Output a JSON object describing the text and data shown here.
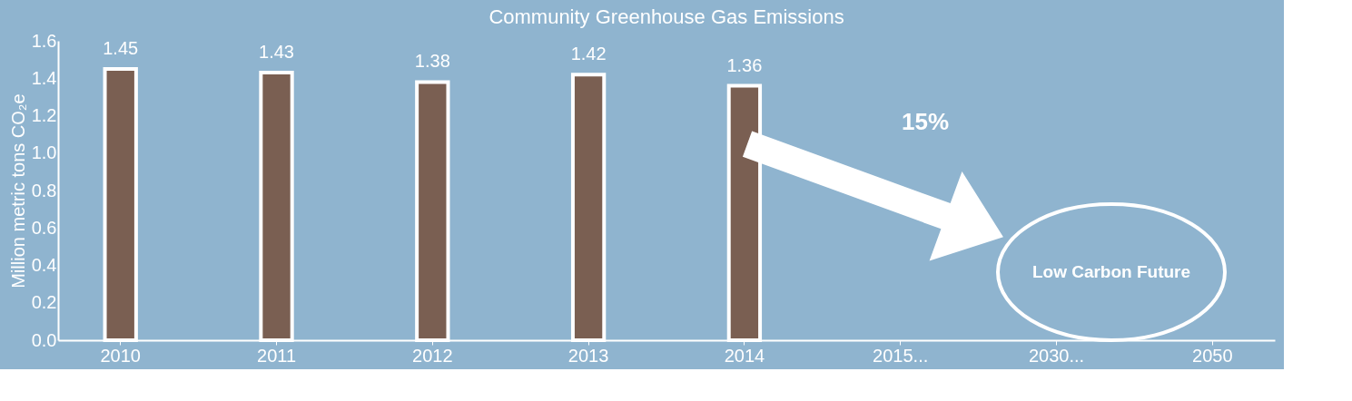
{
  "chart_data": {
    "type": "bar",
    "title": "Community Greenhouse Gas Emissions",
    "ylabel": "Million metric tons CO₂e",
    "categories": [
      "2010",
      "2011",
      "2012",
      "2013",
      "2014",
      "2015...",
      "2030...",
      "2050"
    ],
    "values": [
      1.45,
      1.43,
      1.38,
      1.42,
      1.36,
      null,
      null,
      null
    ],
    "color": "#7a5f52",
    "data_labels": true,
    "grid": false,
    "ylim": [
      0,
      1.6
    ],
    "yticks": [
      {
        "value": 0,
        "label": "0.0"
      },
      0.2,
      0.4,
      0.6,
      0.8,
      {
        "value": 1,
        "label": "1.0"
      },
      1.2,
      1.4,
      1.6
    ],
    "annotations": [
      "15%",
      "Low Carbon Future"
    ]
  }
}
